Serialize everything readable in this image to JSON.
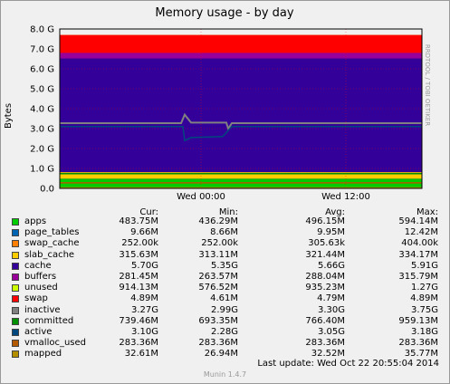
{
  "chart_data": {
    "type": "area",
    "title": "Memory usage - by day",
    "ylabel": "Bytes",
    "ylim": [
      0,
      8.0
    ],
    "yticks": [
      "0.0",
      "1.0 G",
      "2.0 G",
      "3.0 G",
      "4.0 G",
      "5.0 G",
      "6.0 G",
      "7.0 G",
      "8.0 G"
    ],
    "xticks": [
      "Wed 00:00",
      "Wed 12:00"
    ],
    "grid": true,
    "y_unit_scale": "G",
    "stack": [
      {
        "name": "apps",
        "color": "#00cc00",
        "level": 0.48
      },
      {
        "name": "page_tables",
        "color": "#0066b3",
        "level": 0.49
      },
      {
        "name": "swap_cache",
        "color": "#ff8000",
        "level": 0.49
      },
      {
        "name": "slab_cache",
        "color": "#ffcc00",
        "level": 0.81
      },
      {
        "name": "cache",
        "color": "#330099",
        "level": 6.52
      },
      {
        "name": "buffers",
        "color": "#990099",
        "level": 6.8
      },
      {
        "name": "unused",
        "color": "#ccff00",
        "level": 7.7
      },
      {
        "name": "swap",
        "color": "#ff0000",
        "level": 7.7
      }
    ],
    "lines": [
      {
        "name": "inactive",
        "color": "#808080",
        "value": 3.27
      },
      {
        "name": "committed",
        "color": "#008f00",
        "value": 0.74
      },
      {
        "name": "active",
        "color": "#00487d",
        "value": 3.1
      },
      {
        "name": "vmalloc_used",
        "color": "#b35a00",
        "value": 0.28
      },
      {
        "name": "mapped",
        "color": "#b38f00",
        "value": 0.03
      }
    ]
  },
  "legend": {
    "headers": {
      "cur": "Cur:",
      "min": "Min:",
      "avg": "Avg:",
      "max": "Max:"
    },
    "rows": [
      {
        "name": "apps",
        "color": "#00cc00",
        "cur": "483.75M",
        "min": "436.29M",
        "avg": "496.15M",
        "max": "594.14M"
      },
      {
        "name": "page_tables",
        "color": "#0066b3",
        "cur": "9.66M",
        "min": "8.66M",
        "avg": "9.95M",
        "max": "12.42M"
      },
      {
        "name": "swap_cache",
        "color": "#ff8000",
        "cur": "252.00k",
        "min": "252.00k",
        "avg": "305.63k",
        "max": "404.00k"
      },
      {
        "name": "slab_cache",
        "color": "#ffcc00",
        "cur": "315.63M",
        "min": "313.11M",
        "avg": "321.44M",
        "max": "334.17M"
      },
      {
        "name": "cache",
        "color": "#330099",
        "cur": "5.70G",
        "min": "5.35G",
        "avg": "5.66G",
        "max": "5.91G"
      },
      {
        "name": "buffers",
        "color": "#990099",
        "cur": "281.45M",
        "min": "263.57M",
        "avg": "288.04M",
        "max": "315.79M"
      },
      {
        "name": "unused",
        "color": "#ccff00",
        "cur": "914.13M",
        "min": "576.52M",
        "avg": "935.23M",
        "max": "1.27G"
      },
      {
        "name": "swap",
        "color": "#ff0000",
        "cur": "4.89M",
        "min": "4.61M",
        "avg": "4.79M",
        "max": "4.89M"
      },
      {
        "name": "inactive",
        "color": "#808080",
        "cur": "3.27G",
        "min": "2.99G",
        "avg": "3.30G",
        "max": "3.75G"
      },
      {
        "name": "committed",
        "color": "#008f00",
        "cur": "739.46M",
        "min": "693.35M",
        "avg": "766.40M",
        "max": "959.13M"
      },
      {
        "name": "active",
        "color": "#00487d",
        "cur": "3.10G",
        "min": "2.28G",
        "avg": "3.05G",
        "max": "3.18G"
      },
      {
        "name": "vmalloc_used",
        "color": "#b35a00",
        "cur": "283.36M",
        "min": "283.36M",
        "avg": "283.36M",
        "max": "283.36M"
      },
      {
        "name": "mapped",
        "color": "#b38f00",
        "cur": "32.61M",
        "min": "26.94M",
        "avg": "32.52M",
        "max": "35.77M"
      }
    ]
  },
  "footer": {
    "last_update": "Last update: Wed Oct 22 20:55:04 2014",
    "munin_version": "Munin 1.4.7",
    "rrd_credit": "RRDTOOL / TOBI OETIKER"
  }
}
